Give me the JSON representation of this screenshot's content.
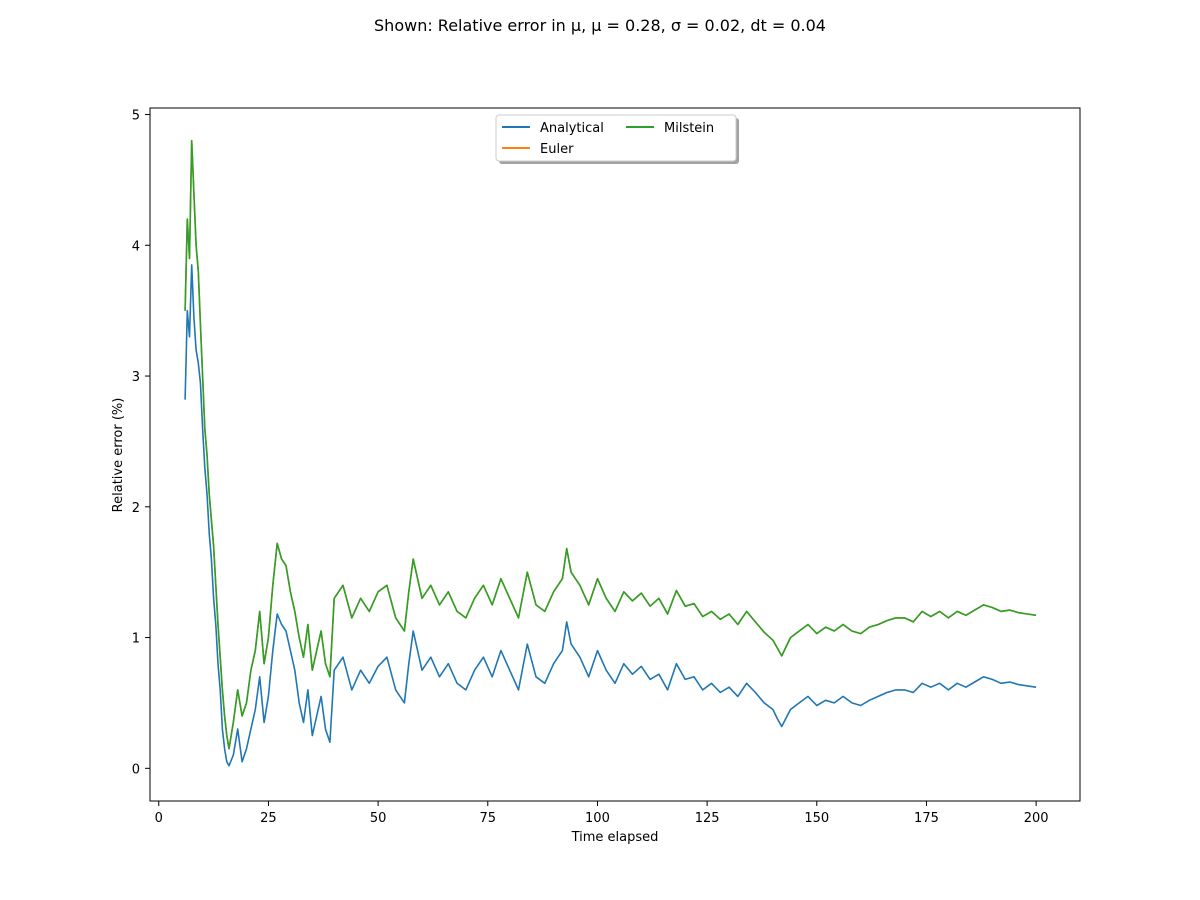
{
  "chart_data": {
    "type": "line",
    "title": "Shown: Relative error in μ, μ = 0.28, σ = 0.02, dt = 0.04",
    "xlabel": "Time elapsed",
    "ylabel": "Relative error (%)",
    "xlim": [
      -2,
      210
    ],
    "ylim": [
      -0.25,
      5.05
    ],
    "xticks": [
      0,
      25,
      50,
      75,
      100,
      125,
      150,
      175,
      200
    ],
    "yticks": [
      0,
      1,
      2,
      3,
      4,
      5
    ],
    "grid": false,
    "legend": {
      "placement": "upper-center",
      "columns": 2
    },
    "series": [
      {
        "name": "Analytical",
        "color": "#1f77b4",
        "x": [
          6,
          6.5,
          7,
          7.5,
          8,
          8.5,
          9,
          9.5,
          10,
          10.5,
          11,
          11.5,
          12,
          12.5,
          13,
          13.5,
          14,
          14.5,
          15,
          15.5,
          16,
          17,
          18,
          19,
          20,
          21,
          22,
          23,
          24,
          25,
          26,
          27,
          28,
          29,
          30,
          31,
          32,
          33,
          34,
          35,
          36,
          37,
          38,
          39,
          40,
          42,
          44,
          46,
          48,
          50,
          52,
          54,
          56,
          57,
          58,
          60,
          62,
          64,
          66,
          68,
          70,
          72,
          74,
          76,
          78,
          80,
          82,
          84,
          86,
          88,
          90,
          92,
          93,
          94,
          96,
          98,
          100,
          102,
          104,
          106,
          108,
          110,
          112,
          114,
          116,
          118,
          120,
          122,
          124,
          126,
          128,
          130,
          132,
          134,
          136,
          138,
          140,
          141,
          142,
          144,
          146,
          148,
          150,
          152,
          154,
          156,
          158,
          160,
          162,
          164,
          166,
          168,
          170,
          172,
          174,
          176,
          178,
          180,
          182,
          184,
          186,
          188,
          190,
          192,
          194,
          196,
          198,
          200
        ],
        "y": [
          2.82,
          3.5,
          3.3,
          3.85,
          3.45,
          3.2,
          3.1,
          2.95,
          2.6,
          2.3,
          2.1,
          1.8,
          1.6,
          1.3,
          1.1,
          0.8,
          0.6,
          0.3,
          0.15,
          0.05,
          0.02,
          0.1,
          0.3,
          0.05,
          0.15,
          0.3,
          0.45,
          0.7,
          0.35,
          0.55,
          0.9,
          1.18,
          1.1,
          1.05,
          0.9,
          0.75,
          0.5,
          0.35,
          0.6,
          0.25,
          0.4,
          0.55,
          0.3,
          0.2,
          0.75,
          0.85,
          0.6,
          0.75,
          0.65,
          0.78,
          0.85,
          0.6,
          0.5,
          0.8,
          1.05,
          0.75,
          0.85,
          0.7,
          0.8,
          0.65,
          0.6,
          0.75,
          0.85,
          0.7,
          0.9,
          0.75,
          0.6,
          0.95,
          0.7,
          0.65,
          0.8,
          0.9,
          1.12,
          0.95,
          0.85,
          0.7,
          0.9,
          0.75,
          0.65,
          0.8,
          0.72,
          0.78,
          0.68,
          0.72,
          0.6,
          0.8,
          0.68,
          0.7,
          0.6,
          0.65,
          0.58,
          0.62,
          0.55,
          0.65,
          0.58,
          0.5,
          0.45,
          0.38,
          0.32,
          0.45,
          0.5,
          0.55,
          0.48,
          0.52,
          0.5,
          0.55,
          0.5,
          0.48,
          0.52,
          0.55,
          0.58,
          0.6,
          0.6,
          0.58,
          0.65,
          0.62,
          0.65,
          0.6,
          0.65,
          0.62,
          0.66,
          0.7,
          0.68,
          0.65,
          0.66,
          0.64,
          0.63,
          0.62
        ]
      },
      {
        "name": "Euler",
        "color": "#ff7f0e",
        "x": [
          6,
          6.5,
          7,
          7.5,
          8,
          8.5,
          9,
          9.5,
          10,
          10.5,
          11,
          11.5,
          12,
          12.5,
          13,
          13.5,
          14,
          14.5,
          15,
          15.5,
          16,
          17,
          18,
          19,
          20,
          21,
          22,
          23,
          24,
          25,
          26,
          27,
          28,
          29,
          30,
          31,
          32,
          33,
          34,
          35,
          36,
          37,
          38,
          39,
          40,
          42,
          44,
          46,
          48,
          50,
          52,
          54,
          56,
          57,
          58,
          60,
          62,
          64,
          66,
          68,
          70,
          72,
          74,
          76,
          78,
          80,
          82,
          84,
          86,
          88,
          90,
          92,
          93,
          94,
          96,
          98,
          100,
          102,
          104,
          106,
          108,
          110,
          112,
          114,
          116,
          118,
          120,
          122,
          124,
          126,
          128,
          130,
          132,
          134,
          136,
          138,
          140,
          141,
          142,
          144,
          146,
          148,
          150,
          152,
          154,
          156,
          158,
          160,
          162,
          164,
          166,
          168,
          170,
          172,
          174,
          176,
          178,
          180,
          182,
          184,
          186,
          188,
          190,
          192,
          194,
          196,
          198,
          200
        ],
        "y": [
          3.5,
          4.2,
          3.9,
          4.8,
          4.4,
          4.0,
          3.8,
          3.4,
          3.0,
          2.6,
          2.4,
          2.1,
          1.9,
          1.7,
          1.4,
          1.1,
          0.85,
          0.6,
          0.4,
          0.25,
          0.15,
          0.35,
          0.6,
          0.4,
          0.5,
          0.75,
          0.9,
          1.2,
          0.8,
          1.0,
          1.4,
          1.72,
          1.6,
          1.55,
          1.35,
          1.2,
          1.0,
          0.85,
          1.1,
          0.75,
          0.9,
          1.05,
          0.8,
          0.7,
          1.3,
          1.4,
          1.15,
          1.3,
          1.2,
          1.35,
          1.4,
          1.15,
          1.05,
          1.35,
          1.6,
          1.3,
          1.4,
          1.25,
          1.35,
          1.2,
          1.15,
          1.3,
          1.4,
          1.25,
          1.45,
          1.3,
          1.15,
          1.5,
          1.25,
          1.2,
          1.35,
          1.45,
          1.68,
          1.5,
          1.4,
          1.25,
          1.45,
          1.3,
          1.2,
          1.35,
          1.28,
          1.34,
          1.24,
          1.3,
          1.18,
          1.36,
          1.24,
          1.26,
          1.16,
          1.2,
          1.14,
          1.18,
          1.1,
          1.2,
          1.12,
          1.04,
          0.98,
          0.92,
          0.86,
          1.0,
          1.05,
          1.1,
          1.03,
          1.08,
          1.05,
          1.1,
          1.05,
          1.03,
          1.08,
          1.1,
          1.13,
          1.15,
          1.15,
          1.12,
          1.2,
          1.16,
          1.2,
          1.15,
          1.2,
          1.17,
          1.21,
          1.25,
          1.23,
          1.2,
          1.21,
          1.19,
          1.18,
          1.17
        ]
      },
      {
        "name": "Milstein",
        "color": "#2ca02c",
        "x": [
          6,
          6.5,
          7,
          7.5,
          8,
          8.5,
          9,
          9.5,
          10,
          10.5,
          11,
          11.5,
          12,
          12.5,
          13,
          13.5,
          14,
          14.5,
          15,
          15.5,
          16,
          17,
          18,
          19,
          20,
          21,
          22,
          23,
          24,
          25,
          26,
          27,
          28,
          29,
          30,
          31,
          32,
          33,
          34,
          35,
          36,
          37,
          38,
          39,
          40,
          42,
          44,
          46,
          48,
          50,
          52,
          54,
          56,
          57,
          58,
          60,
          62,
          64,
          66,
          68,
          70,
          72,
          74,
          76,
          78,
          80,
          82,
          84,
          86,
          88,
          90,
          92,
          93,
          94,
          96,
          98,
          100,
          102,
          104,
          106,
          108,
          110,
          112,
          114,
          116,
          118,
          120,
          122,
          124,
          126,
          128,
          130,
          132,
          134,
          136,
          138,
          140,
          141,
          142,
          144,
          146,
          148,
          150,
          152,
          154,
          156,
          158,
          160,
          162,
          164,
          166,
          168,
          170,
          172,
          174,
          176,
          178,
          180,
          182,
          184,
          186,
          188,
          190,
          192,
          194,
          196,
          198,
          200
        ],
        "y": [
          3.5,
          4.2,
          3.9,
          4.8,
          4.4,
          4.0,
          3.8,
          3.4,
          3.0,
          2.6,
          2.4,
          2.1,
          1.9,
          1.7,
          1.4,
          1.1,
          0.85,
          0.6,
          0.4,
          0.25,
          0.15,
          0.35,
          0.6,
          0.4,
          0.5,
          0.75,
          0.9,
          1.2,
          0.8,
          1.0,
          1.4,
          1.72,
          1.6,
          1.55,
          1.35,
          1.2,
          1.0,
          0.85,
          1.1,
          0.75,
          0.9,
          1.05,
          0.8,
          0.7,
          1.3,
          1.4,
          1.15,
          1.3,
          1.2,
          1.35,
          1.4,
          1.15,
          1.05,
          1.35,
          1.6,
          1.3,
          1.4,
          1.25,
          1.35,
          1.2,
          1.15,
          1.3,
          1.4,
          1.25,
          1.45,
          1.3,
          1.15,
          1.5,
          1.25,
          1.2,
          1.35,
          1.45,
          1.68,
          1.5,
          1.4,
          1.25,
          1.45,
          1.3,
          1.2,
          1.35,
          1.28,
          1.34,
          1.24,
          1.3,
          1.18,
          1.36,
          1.24,
          1.26,
          1.16,
          1.2,
          1.14,
          1.18,
          1.1,
          1.2,
          1.12,
          1.04,
          0.98,
          0.92,
          0.86,
          1.0,
          1.05,
          1.1,
          1.03,
          1.08,
          1.05,
          1.1,
          1.05,
          1.03,
          1.08,
          1.1,
          1.13,
          1.15,
          1.15,
          1.12,
          1.2,
          1.16,
          1.2,
          1.15,
          1.2,
          1.17,
          1.21,
          1.25,
          1.23,
          1.2,
          1.21,
          1.19,
          1.18,
          1.17
        ]
      }
    ]
  }
}
